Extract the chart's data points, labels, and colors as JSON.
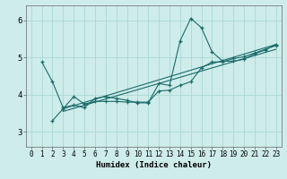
{
  "xlabel": "Humidex (Indice chaleur)",
  "bg_color": "#ceecea",
  "grid_color": "#a8d8d4",
  "line_color": "#1a6b6b",
  "xlim": [
    -0.5,
    23.5
  ],
  "ylim": [
    2.6,
    6.4
  ],
  "yticks": [
    3,
    4,
    5,
    6
  ],
  "xticks": [
    0,
    1,
    2,
    3,
    4,
    5,
    6,
    7,
    8,
    9,
    10,
    11,
    12,
    13,
    14,
    15,
    16,
    17,
    18,
    19,
    20,
    21,
    22,
    23
  ],
  "lines": [
    {
      "x": [
        1,
        2,
        3,
        4,
        5,
        6,
        7,
        8,
        9,
        10,
        11,
        12,
        13,
        14,
        15,
        16,
        17,
        18,
        19,
        20,
        21,
        22,
        23
      ],
      "y": [
        4.88,
        4.35,
        3.65,
        3.72,
        3.65,
        3.9,
        3.95,
        3.9,
        3.85,
        3.78,
        3.78,
        4.3,
        4.25,
        5.45,
        6.05,
        5.8,
        5.15,
        4.9,
        4.9,
        4.95,
        5.1,
        5.2,
        5.35
      ]
    },
    {
      "x": [
        2,
        3,
        4,
        5,
        6,
        7,
        8,
        9,
        10,
        11,
        12,
        13,
        14,
        15,
        16,
        17,
        18,
        19,
        20,
        21,
        22,
        23
      ],
      "y": [
        3.3,
        3.62,
        3.95,
        3.75,
        3.82,
        3.82,
        3.82,
        3.8,
        3.8,
        3.8,
        4.1,
        4.12,
        4.25,
        4.35,
        4.72,
        4.88,
        4.88,
        4.97,
        5.02,
        5.12,
        5.22,
        5.32
      ]
    },
    {
      "x": [
        3,
        23
      ],
      "y": [
        3.62,
        5.35
      ]
    },
    {
      "x": [
        3,
        23
      ],
      "y": [
        3.55,
        5.22
      ]
    }
  ]
}
